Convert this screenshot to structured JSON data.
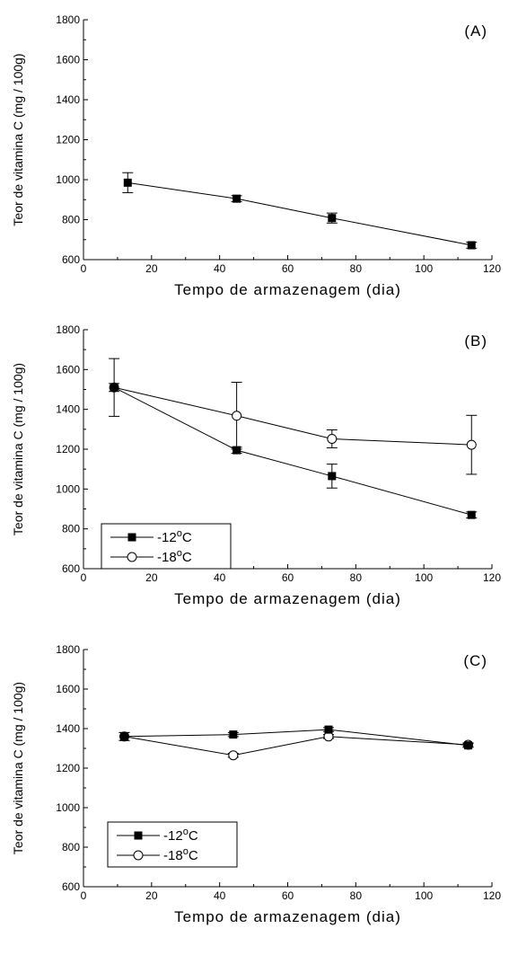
{
  "chart_data": [
    {
      "type": "line",
      "panel_label": "(A)",
      "xlabel": "Tempo de armazenagem (dia)",
      "ylabel": "Teor de vitamina C (mg / 100g)",
      "xlim": [
        0,
        120
      ],
      "ylim": [
        600,
        1800
      ],
      "xticks": [
        0,
        20,
        40,
        60,
        80,
        100,
        120
      ],
      "yticks": [
        600,
        800,
        1000,
        1200,
        1400,
        1600,
        1800
      ],
      "legend": null,
      "series": [
        {
          "marker": "filled-square",
          "x": [
            13,
            45,
            73,
            114
          ],
          "y": [
            985,
            905,
            808,
            672
          ],
          "error": [
            50,
            15,
            25,
            15
          ]
        }
      ]
    },
    {
      "type": "line",
      "panel_label": "(B)",
      "xlabel": "Tempo de armazenagem (dia)",
      "ylabel": "Teor de vitamina C (mg / 100g)",
      "xlim": [
        0,
        120
      ],
      "ylim": [
        600,
        1800
      ],
      "xticks": [
        0,
        20,
        40,
        60,
        80,
        100,
        120
      ],
      "yticks": [
        600,
        800,
        1000,
        1200,
        1400,
        1600,
        1800
      ],
      "legend": "bottom-left",
      "series": [
        {
          "name": "-12°C",
          "marker": "filled-square",
          "x": [
            9,
            45,
            73,
            114
          ],
          "y": [
            1510,
            1195,
            1065,
            870
          ],
          "error": [
            20,
            15,
            60,
            15
          ]
        },
        {
          "name": "-18°C",
          "marker": "open-circle",
          "x": [
            9,
            45,
            73,
            114
          ],
          "y": [
            1510,
            1368,
            1252,
            1222
          ],
          "error": [
            145,
            168,
            45,
            148
          ]
        }
      ]
    },
    {
      "type": "line",
      "panel_label": "(C)",
      "xlabel": "Tempo de armazenagem (dia)",
      "ylabel": "Teor de vitamina C (mg / 100g)",
      "xlim": [
        0,
        120
      ],
      "ylim": [
        600,
        1800
      ],
      "xticks": [
        0,
        20,
        40,
        60,
        80,
        100,
        120
      ],
      "yticks": [
        600,
        800,
        1000,
        1200,
        1400,
        1600,
        1800
      ],
      "legend": "bottom-left",
      "series": [
        {
          "name": "-12°C",
          "marker": "filled-square",
          "x": [
            12,
            44,
            72,
            113
          ],
          "y": [
            1360,
            1370,
            1395,
            1315
          ],
          "error": [
            20,
            10,
            10,
            10
          ]
        },
        {
          "name": "-18°C",
          "marker": "open-circle",
          "x": [
            12,
            44,
            72,
            113
          ],
          "y": [
            1360,
            1265,
            1360,
            1318
          ],
          "error": [
            20,
            10,
            10,
            10
          ]
        }
      ]
    }
  ],
  "legend_labels": {
    "minus12_prefix": "-12",
    "minus18_prefix": "-18",
    "degree": "o",
    "unit": "C"
  }
}
